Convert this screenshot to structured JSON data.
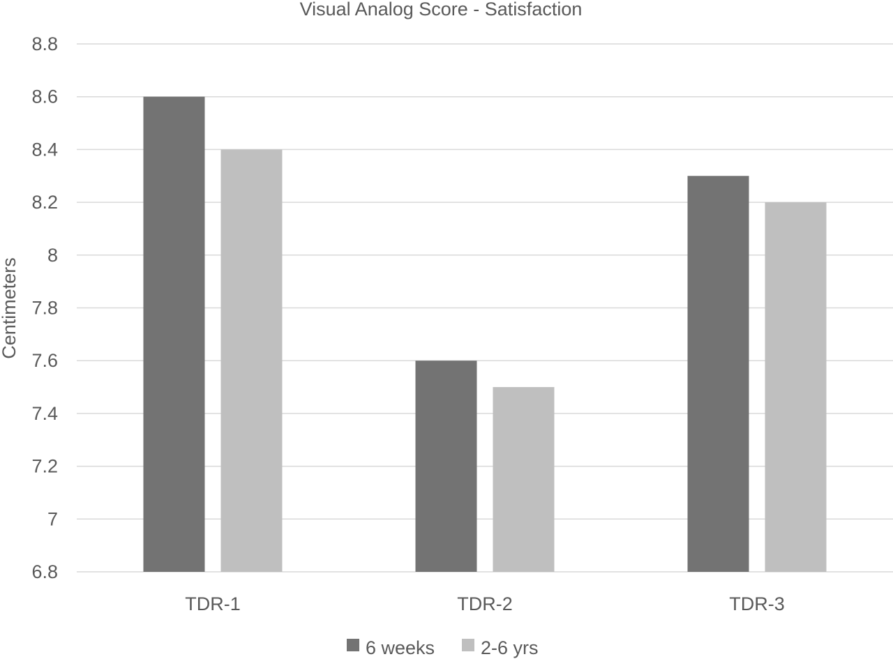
{
  "chart_data": {
    "type": "bar",
    "title": "Visual Analog Score - Satisfaction",
    "xlabel": "",
    "ylabel": "Centimeters",
    "ylim": [
      6.8,
      8.8
    ],
    "yticks": [
      "6.8",
      "7",
      "7.2",
      "7.4",
      "7.6",
      "7.8",
      "8",
      "8.2",
      "8.4",
      "8.6",
      "8.8"
    ],
    "grid": true,
    "legend_position": "bottom",
    "categories": [
      "TDR-1",
      "TDR-2",
      "TDR-3"
    ],
    "series": [
      {
        "name": "6 weeks",
        "values": [
          8.6,
          7.6,
          8.3
        ],
        "color": "#737373"
      },
      {
        "name": "2-6 yrs",
        "values": [
          8.4,
          7.5,
          8.2
        ],
        "color": "#bfbfbf"
      }
    ]
  }
}
